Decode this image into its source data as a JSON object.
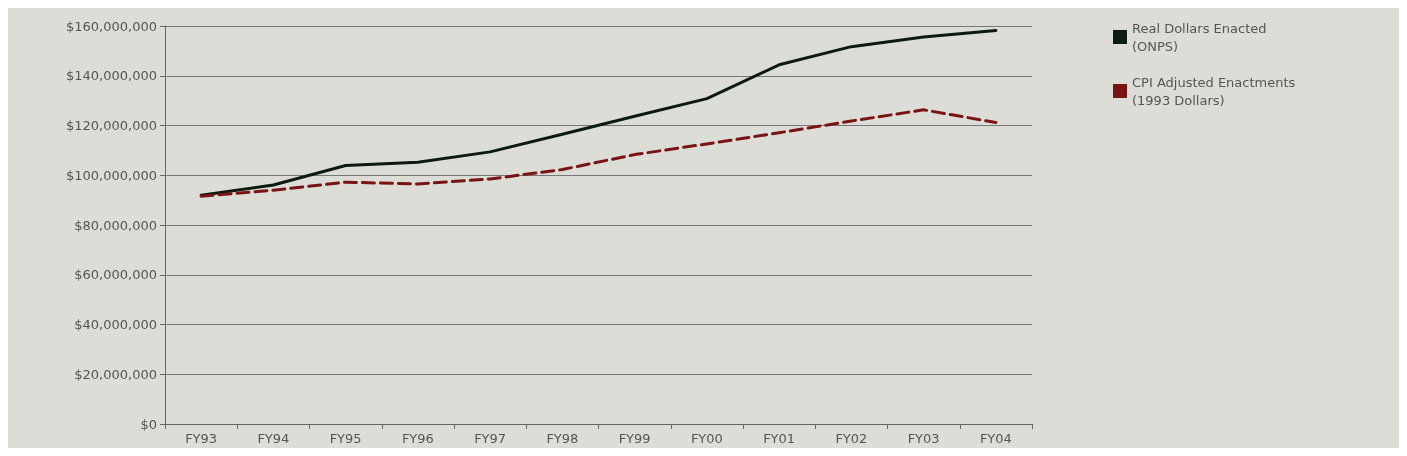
{
  "chart_data": {
    "type": "line",
    "categories": [
      "FY93",
      "FY94",
      "FY95",
      "FY96",
      "FY97",
      "FY98",
      "FY99",
      "FY00",
      "FY01",
      "FY02",
      "FY03",
      "FY04"
    ],
    "series": [
      {
        "name": "Real Dollars Enacted\n(ONPS)",
        "color": "#0d1a12",
        "line_style": "solid",
        "values": [
          92000000,
          96100000,
          103900000,
          105200000,
          109400000,
          116500000,
          123700000,
          130800000,
          144400000,
          151700000,
          155600000,
          158200000
        ]
      },
      {
        "name": "CPI Adjusted Enactments\n(1993 Dollars)",
        "color": "#7a1414",
        "line_style": "dashed",
        "values": [
          91600000,
          94000000,
          97200000,
          96500000,
          98500000,
          102300000,
          108300000,
          112600000,
          117100000,
          121800000,
          126300000,
          121200000
        ]
      }
    ],
    "ylim": [
      0,
      160000000
    ],
    "yticks": [
      {
        "value": 0,
        "label": "$0"
      },
      {
        "value": 20000000,
        "label": "$20,000,000"
      },
      {
        "value": 40000000,
        "label": "$40,000,000"
      },
      {
        "value": 60000000,
        "label": "$60,000,000"
      },
      {
        "value": 80000000,
        "label": "$80,000,000"
      },
      {
        "value": 100000000,
        "label": "$100,000,000"
      },
      {
        "value": 120000000,
        "label": "$120,000,000"
      },
      {
        "value": 140000000,
        "label": "$140,000,000"
      },
      {
        "value": 160000000,
        "label": "$160,000,000"
      }
    ],
    "grid": "y",
    "legend": "top right",
    "marker": "none"
  }
}
